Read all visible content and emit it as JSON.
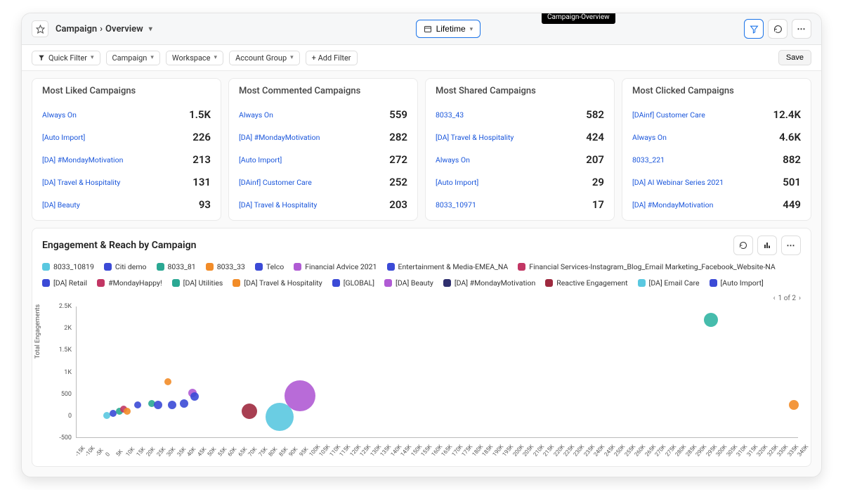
{
  "tooltip": "Campaign-Overview",
  "breadcrumb": {
    "root": "Campaign",
    "sep": "›",
    "current": "Overview"
  },
  "time_selector": {
    "label": "Lifetime"
  },
  "filters": {
    "quick_filter": "Quick Filter",
    "items": [
      "Campaign",
      "Workspace",
      "Account Group"
    ],
    "add": "+  Add Filter",
    "save": "Save"
  },
  "cards": [
    {
      "title": "Most Liked Campaigns",
      "rows": [
        {
          "label": "Always On",
          "value": "1.5K"
        },
        {
          "label": "[Auto Import]",
          "value": "226"
        },
        {
          "label": "[DA] #MondayMotivation",
          "value": "213"
        },
        {
          "label": "[DA] Travel & Hospitality",
          "value": "131"
        },
        {
          "label": "[DA] Beauty",
          "value": "93"
        }
      ]
    },
    {
      "title": "Most Commented Campaigns",
      "rows": [
        {
          "label": "Always On",
          "value": "559"
        },
        {
          "label": "[DA] #MondayMotivation",
          "value": "282"
        },
        {
          "label": "[Auto Import]",
          "value": "272"
        },
        {
          "label": "[DAinf] Customer Care",
          "value": "252"
        },
        {
          "label": "[DA] Travel & Hospitality",
          "value": "203"
        }
      ]
    },
    {
      "title": "Most Shared Campaigns",
      "rows": [
        {
          "label": "8033_43",
          "value": "582"
        },
        {
          "label": "[DA] Travel & Hospitality",
          "value": "424"
        },
        {
          "label": "Always On",
          "value": "207"
        },
        {
          "label": "[Auto Import]",
          "value": "29"
        },
        {
          "label": "8033_10971",
          "value": "17"
        }
      ]
    },
    {
      "title": "Most Clicked Campaigns",
      "rows": [
        {
          "label": "[DAinf] Customer Care",
          "value": "12.4K"
        },
        {
          "label": "Always On",
          "value": "4.6K"
        },
        {
          "label": "8033_221",
          "value": "882"
        },
        {
          "label": "[DA] AI Webinar Series 2021",
          "value": "501"
        },
        {
          "label": "[DA] #MondayMotivation",
          "value": "449"
        }
      ]
    }
  ],
  "chart": {
    "title": "Engagement & Reach by Campaign",
    "y_label": "Total Engagements",
    "legend": [
      {
        "name": "8033_10819",
        "color": "#5ac8e0"
      },
      {
        "name": "Citi demo",
        "color": "#3b4ad6"
      },
      {
        "name": "8033_81",
        "color": "#2aa893"
      },
      {
        "name": "8033_33",
        "color": "#f28c28"
      },
      {
        "name": "Telco",
        "color": "#3b4ad6"
      },
      {
        "name": "Financial Advice 2021",
        "color": "#b05bd4"
      },
      {
        "name": "Entertainment & Media-EMEA_NA",
        "color": "#3b4ad6"
      },
      {
        "name": "Financial Services-Instagram_Blog_Email Marketing_Facebook_Website-NA",
        "color": "#c23664"
      },
      {
        "name": "[DA] Retail",
        "color": "#3b4ad6"
      },
      {
        "name": "#MondayHappy!",
        "color": "#c23664"
      },
      {
        "name": "[DA] Utilities",
        "color": "#2aa893"
      },
      {
        "name": "[DA] Travel & Hospitality",
        "color": "#f28c28"
      },
      {
        "name": "[GLOBAL]",
        "color": "#3b4ad6"
      },
      {
        "name": "[DA] Beauty",
        "color": "#b05bd4"
      },
      {
        "name": "[DA] #MondayMotivation",
        "color": "#2f2f6e"
      },
      {
        "name": "Reactive Engagement",
        "color": "#9e2a3f"
      },
      {
        "name": "[DA] Email Care",
        "color": "#5ac8e0"
      },
      {
        "name": "[Auto Import]",
        "color": "#3b4ad6"
      }
    ],
    "pager": "1 of 2",
    "y_ticks": [
      "2.5K",
      "2K",
      "1.5K",
      "1K",
      "500",
      "0",
      "-500"
    ],
    "y_min": -500,
    "y_max": 2500,
    "x_min": -15000,
    "x_max": 340000,
    "x_step": 5000,
    "bubbles": [
      {
        "x": 0,
        "y": 0,
        "r": 5,
        "color": "#5ac8e0"
      },
      {
        "x": 3000,
        "y": 50,
        "r": 5,
        "color": "#3b4ad6"
      },
      {
        "x": 6000,
        "y": 90,
        "r": 5,
        "color": "#2aa893"
      },
      {
        "x": 8000,
        "y": 150,
        "r": 5,
        "color": "#c23664"
      },
      {
        "x": 10000,
        "y": 100,
        "r": 5,
        "color": "#f28c28"
      },
      {
        "x": 15000,
        "y": 250,
        "r": 5,
        "color": "#3b4ad6"
      },
      {
        "x": 22000,
        "y": 280,
        "r": 5,
        "color": "#2aa893"
      },
      {
        "x": 25000,
        "y": 250,
        "r": 6,
        "color": "#3b4ad6"
      },
      {
        "x": 30000,
        "y": 780,
        "r": 5,
        "color": "#f28c28"
      },
      {
        "x": 32000,
        "y": 250,
        "r": 6,
        "color": "#3b4ad6"
      },
      {
        "x": 38000,
        "y": 270,
        "r": 6,
        "color": "#3b4ad6"
      },
      {
        "x": 42000,
        "y": 520,
        "r": 6,
        "color": "#b05bd4"
      },
      {
        "x": 43000,
        "y": 430,
        "r": 6,
        "color": "#3b4ad6"
      },
      {
        "x": 70000,
        "y": 100,
        "r": 11,
        "color": "#9e2a3f"
      },
      {
        "x": 85000,
        "y": -30,
        "r": 20,
        "color": "#5ac8e0"
      },
      {
        "x": 95000,
        "y": 450,
        "r": 22,
        "color": "#b05bd4"
      },
      {
        "x": 297000,
        "y": 2200,
        "r": 10,
        "color": "#32b5a3"
      },
      {
        "x": 338000,
        "y": 250,
        "r": 7,
        "color": "#f28c28"
      }
    ]
  }
}
